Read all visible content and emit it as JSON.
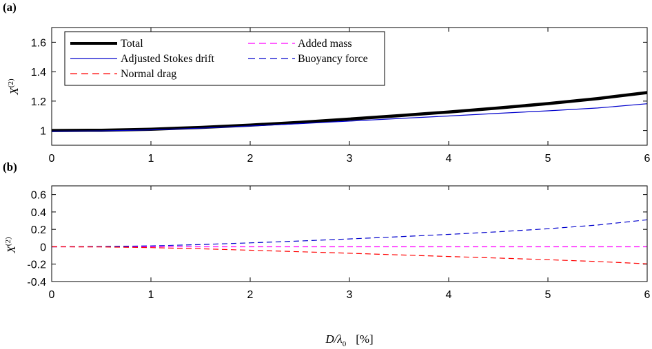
{
  "chart_data": [
    {
      "panel_label": "(a)",
      "type": "line",
      "ylabel": "X",
      "ylabel_superscript": "(2)",
      "xlim": [
        0,
        6
      ],
      "ylim": [
        0.9,
        1.7
      ],
      "xticks": [
        "0",
        "1",
        "2",
        "3",
        "4",
        "5",
        "6"
      ],
      "yticks": [
        "1",
        "1.2",
        "1.4",
        "1.6"
      ],
      "legend_position": "top-left",
      "legend": [
        {
          "label": "Total",
          "color": "#000000",
          "style": "solid-thick"
        },
        {
          "label": "Added mass",
          "color": "#ff00ff",
          "style": "dashed"
        },
        {
          "label": "Adjusted Stokes drift",
          "color": "#0000cc",
          "style": "solid"
        },
        {
          "label": "Buoyancy force",
          "color": "#0000cc",
          "style": "dashed"
        },
        {
          "label": "Normal drag",
          "color": "#ff0000",
          "style": "dashed"
        }
      ],
      "x": [
        0,
        0.5,
        1,
        1.5,
        2,
        2.5,
        3,
        3.5,
        4,
        4.5,
        5,
        5.5,
        6
      ],
      "series": [
        {
          "name": "Total",
          "values": [
            1.0,
            1.002,
            1.009,
            1.021,
            1.037,
            1.056,
            1.078,
            1.101,
            1.126,
            1.153,
            1.183,
            1.217,
            1.258
          ]
        },
        {
          "name": "Adjusted Stokes drift",
          "values": [
            0.996,
            0.998,
            1.005,
            1.016,
            1.031,
            1.047,
            1.064,
            1.082,
            1.099,
            1.117,
            1.134,
            1.153,
            1.182
          ]
        }
      ]
    },
    {
      "panel_label": "(b)",
      "type": "line",
      "ylabel": "X",
      "ylabel_superscript": "(2)",
      "xlabel": "D/λ",
      "xlabel_subscript": "0",
      "xlabel_unit": "[%]",
      "xlim": [
        0,
        6
      ],
      "ylim": [
        -0.4,
        0.7
      ],
      "xticks": [
        "0",
        "1",
        "2",
        "3",
        "4",
        "5",
        "6"
      ],
      "yticks": [
        "-0.4",
        "-0.2",
        "0",
        "0.2",
        "0.4",
        "0.6"
      ],
      "x": [
        0,
        0.5,
        1,
        1.5,
        2,
        2.5,
        3,
        3.5,
        4,
        4.5,
        5,
        5.5,
        6
      ],
      "series": [
        {
          "name": "Added mass",
          "values": [
            0,
            0,
            0,
            0,
            0,
            0,
            0,
            0,
            0,
            0,
            0,
            0,
            0
          ]
        },
        {
          "name": "Buoyancy force",
          "values": [
            0,
            0.002,
            0.01,
            0.025,
            0.045,
            0.066,
            0.09,
            0.115,
            0.142,
            0.172,
            0.207,
            0.25,
            0.31
          ]
        },
        {
          "name": "Normal drag",
          "values": [
            0,
            -0.002,
            -0.01,
            -0.023,
            -0.04,
            -0.057,
            -0.075,
            -0.094,
            -0.112,
            -0.13,
            -0.149,
            -0.17,
            -0.197
          ]
        }
      ]
    }
  ],
  "colors": {
    "total": "#000000",
    "stokes": "#0000cc",
    "buoyancy": "#0000cc",
    "added_mass": "#ff00ff",
    "normal_drag": "#ff0000"
  }
}
